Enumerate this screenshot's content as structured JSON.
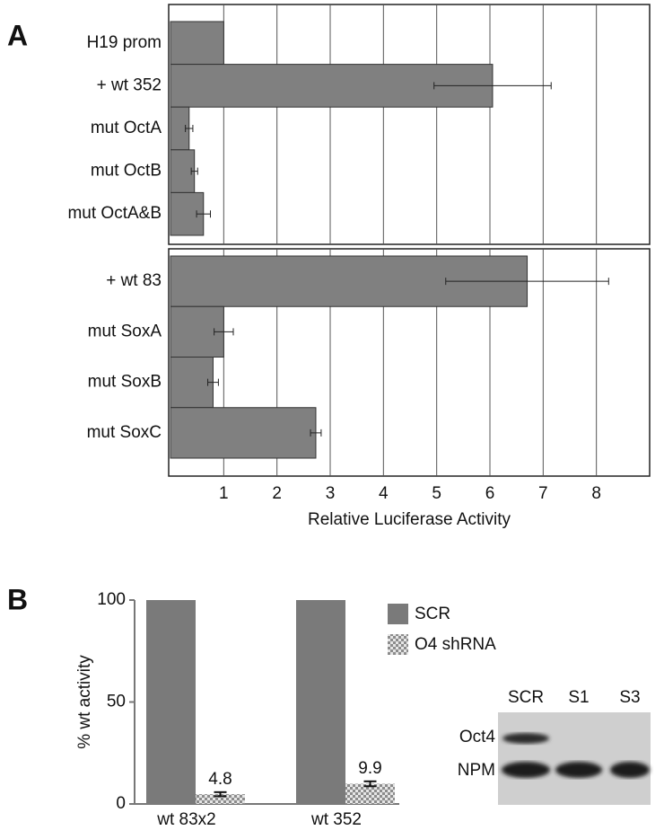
{
  "chart_data": [
    {
      "type": "bar",
      "orientation": "horizontal",
      "panel": "A",
      "categories": [
        "H19 prom",
        "+ wt 352",
        "mut OctA",
        "mut OctB",
        "mut OctA&B"
      ],
      "values": [
        1,
        6.05,
        0.35,
        0.45,
        0.62
      ],
      "errors": [
        null,
        1.1,
        0.07,
        0.06,
        0.13
      ],
      "color": "#808080",
      "xlim": [
        0,
        9
      ],
      "xticks": [
        1,
        2,
        3,
        4,
        5,
        6,
        7,
        8
      ],
      "grid": true
    },
    {
      "type": "bar",
      "orientation": "horizontal",
      "categories": [
        "+ wt 83",
        "mut SoxA",
        "mut SoxB",
        "mut SoxC"
      ],
      "values": [
        6.7,
        1.0,
        0.8,
        2.73
      ],
      "errors": [
        1.53,
        0.18,
        0.1,
        0.1
      ],
      "color": "#808080",
      "xlim": [
        0,
        9
      ],
      "xticks": [
        1,
        2,
        3,
        4,
        5,
        6,
        7,
        8
      ],
      "grid": true,
      "xlabel": "Relative Luciferase Activity"
    },
    {
      "type": "bar",
      "orientation": "vertical",
      "panel": "B",
      "categories": [
        "wt 83x2",
        "wt 352"
      ],
      "series": [
        {
          "name": "SCR",
          "color": "#7a7a7a",
          "values": [
            100,
            100
          ]
        },
        {
          "name": "O4 shRNA",
          "color": "#8c8c8c",
          "pattern": "checker",
          "values": [
            4.8,
            9.9
          ],
          "errors": [
            1,
            1.2
          ]
        }
      ],
      "ylim": [
        0,
        100
      ],
      "yticks": [
        0,
        50,
        100
      ],
      "ylabel": "% wt activity"
    }
  ],
  "blot": {
    "lanes": [
      "SCR",
      "S1",
      "S3"
    ],
    "rows": [
      "Oct4",
      "NPM"
    ]
  }
}
